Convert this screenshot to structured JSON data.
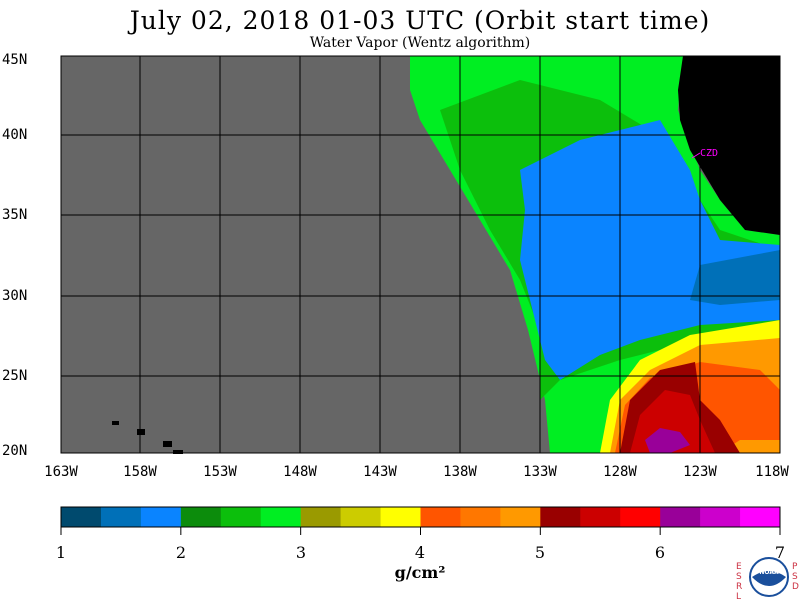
{
  "title": "July 02, 2018  01-03 UTC  (Orbit start time)",
  "subtitle": "Water Vapor (Wentz algorithm)",
  "lat_labels": [
    "45N",
    "40N",
    "35N",
    "30N",
    "25N",
    "20N"
  ],
  "lon_labels": [
    "163W",
    "158W",
    "153W",
    "148W",
    "143W",
    "138W",
    "133W",
    "128W",
    "123W",
    "118W"
  ],
  "station_label": "CZD",
  "colorbar": {
    "ticks": [
      "1",
      "2",
      "3",
      "4",
      "5",
      "6",
      "7"
    ],
    "unit": "g/cm²",
    "colors": [
      "#004a6e",
      "#0070b8",
      "#0a84ff",
      "#0c8c0c",
      "#0cbf0c",
      "#00ee22",
      "#9a9a00",
      "#cccc00",
      "#ffff00",
      "#ff5500",
      "#ff7700",
      "#ff9900",
      "#990000",
      "#cc0000",
      "#ff0000",
      "#990099",
      "#cc00cc",
      "#ff00ff"
    ]
  },
  "map": {
    "lat_range": [
      20,
      45
    ],
    "lon_range": [
      -163,
      -118
    ],
    "no_data_color": "#666666",
    "land_color": "#000000",
    "grid_color": "#000000"
  },
  "logo": {
    "left_letters": [
      "E",
      "S",
      "R",
      "L"
    ],
    "right_letters": [
      "P",
      "S",
      "D"
    ],
    "text": "NOAA"
  }
}
